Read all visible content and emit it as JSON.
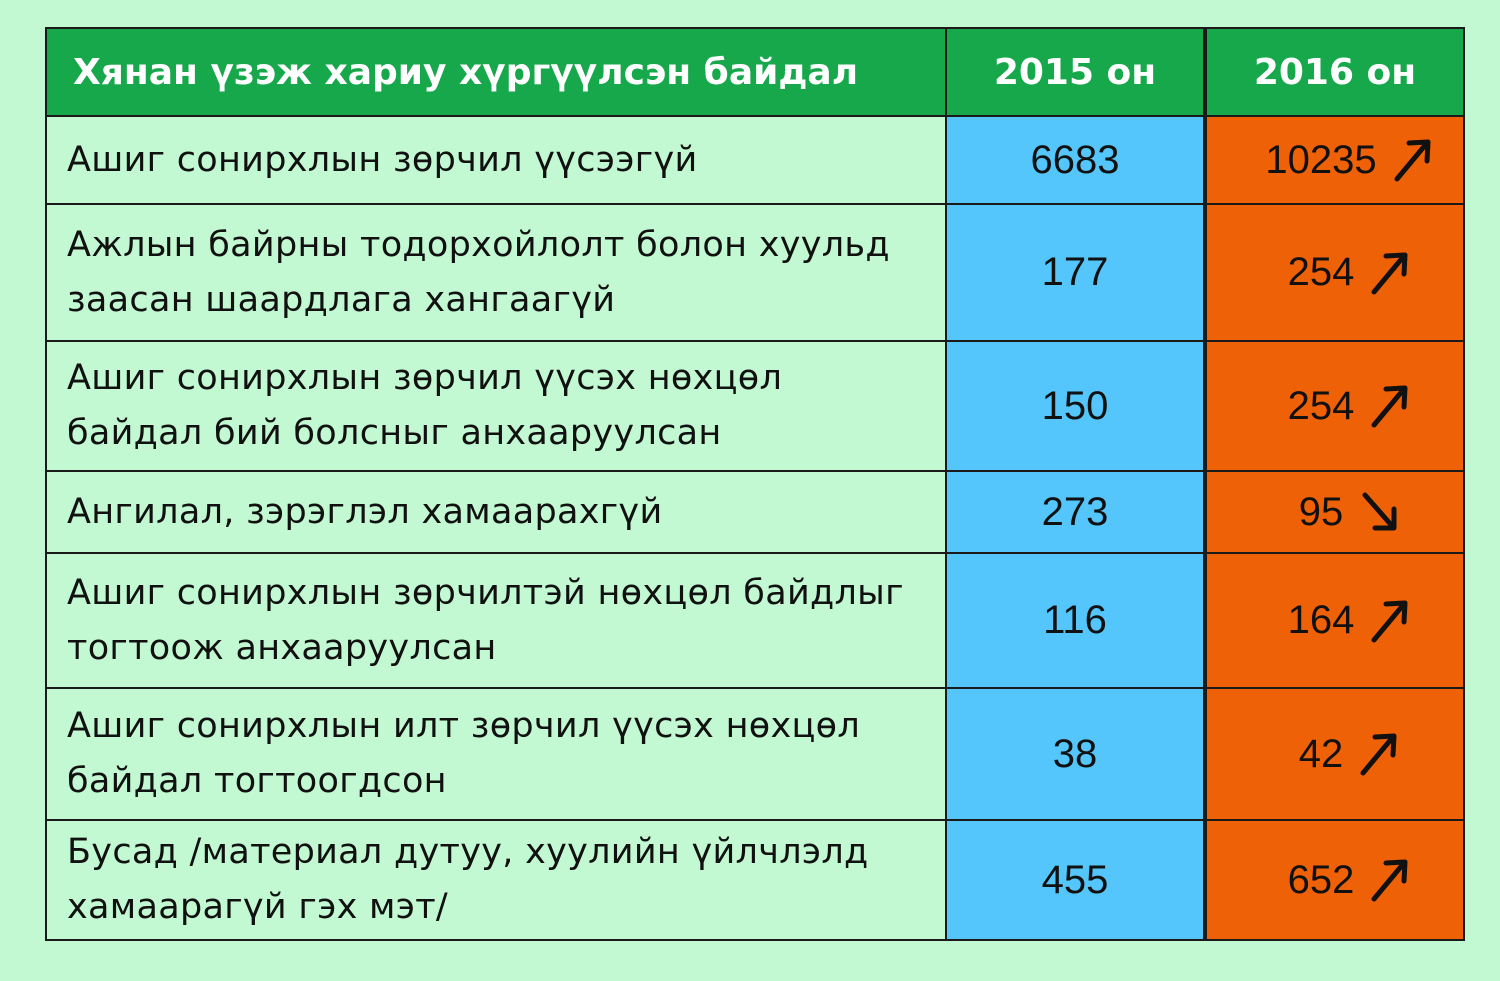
{
  "chart_data": {
    "type": "table",
    "columns": [
      "Хянан үзэж хариу хүргүүлсэн байдал",
      "2015 он",
      "2016 он"
    ],
    "rows": [
      {
        "label": "Ашиг сонирхлын зөрчил үүсээгүй",
        "v2015": "6683",
        "v2016": "10235",
        "trend": "up"
      },
      {
        "label": "Ажлын байрны тодорхойлолт болон хуульд заасан шаардлага хангаагүй",
        "v2015": "177",
        "v2016": "254",
        "trend": "up"
      },
      {
        "label": "Ашиг сонирхлын зөрчил үүсэх нөхцөл байдал бий болсныг анхааруулсан",
        "v2015": "150",
        "v2016": "254",
        "trend": "up"
      },
      {
        "label": "Ангилал, зэрэглэл хамаарахгүй",
        "v2015": "273",
        "v2016": "95",
        "trend": "down"
      },
      {
        "label": "Ашиг сонирхлын зөрчилтэй нөхцөл байдлыг тогтоож анхааруулсан",
        "v2015": "116",
        "v2016": "164",
        "trend": "up"
      },
      {
        "label": "Ашиг сонирхлын илт зөрчил үүсэх нөхцөл байдал тогтоогдсон",
        "v2015": "38",
        "v2016": "42",
        "trend": "up"
      },
      {
        "label": "Бусад /материал дутуу, хуулийн үйлчлэлд хамаарагүй гэх мэт/",
        "v2015": "455",
        "v2016": "652",
        "trend": "up"
      }
    ]
  },
  "colors": {
    "background": "#c3f9d2",
    "header": "#16a84a",
    "col_2015": "#55c6fc",
    "col_2016": "#ef6107"
  },
  "icons": {
    "up": "arrow-up-right-icon",
    "down": "arrow-down-right-icon"
  }
}
